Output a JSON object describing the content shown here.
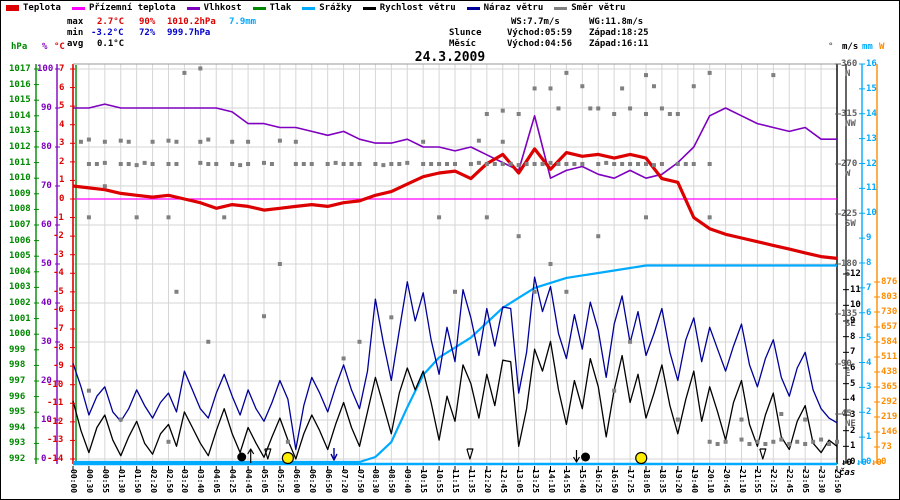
{
  "title": "24.3.2009",
  "legend": {
    "items": [
      {
        "label": "Teplota",
        "color": "#dd0000",
        "thick": 6
      },
      {
        "label": "Přízemní teplota",
        "color": "#ff00ff",
        "thick": 3
      },
      {
        "label": "Vlhkost",
        "color": "#7f00bf",
        "thick": 3
      },
      {
        "label": "Tlak",
        "color": "#008800",
        "thick": 3
      },
      {
        "label": "Srážky",
        "color": "#00aaff",
        "thick": 3
      },
      {
        "label": "Rychlost větru",
        "color": "#000000",
        "thick": 3
      },
      {
        "label": "Náraz větru",
        "color": "#000099",
        "thick": 3
      },
      {
        "label": "Směr větru",
        "color": "#808080",
        "thick": 3
      }
    ]
  },
  "stats": {
    "max_label": "max",
    "max_temp": "2.7°C",
    "max_hum": "90%",
    "max_press": "1010.2hPa",
    "max_precip": "7.9mm",
    "min_label": "min",
    "min_temp": "-3.2°C",
    "min_hum": "72%",
    "min_press": "999.7hPa",
    "avg_label": "avg",
    "avg_temp": "0.1°C",
    "ws": "WS:7.7m/s",
    "wg": "WG:11.8m/s",
    "sun_label": "Slunce",
    "sun_rise": "Východ:05:59",
    "sun_set": "Západ:18:25",
    "moon_label": "Měsíc",
    "moon_rise": "Východ:04:56",
    "moon_set": "Západ:16:11"
  },
  "axes": {
    "hpa": {
      "header": "hPa",
      "color": "#008800",
      "labels": [
        1017,
        1016,
        1015,
        1014,
        1013,
        1012,
        1011,
        1010,
        1009,
        1008,
        1007,
        1006,
        1005,
        1004,
        1003,
        1002,
        1001,
        1000,
        999,
        998,
        997,
        996,
        995,
        994,
        993,
        992
      ]
    },
    "pct": {
      "header": "%",
      "color": "#7f00bf",
      "labels": [
        100,
        90,
        80,
        70,
        60,
        50,
        40,
        30,
        20,
        10,
        0
      ]
    },
    "temp": {
      "header": "°C",
      "color": "#dd0000",
      "labels": [
        7,
        6,
        5,
        4,
        3,
        2,
        1,
        0,
        -1,
        -2,
        -3,
        -4,
        -5,
        -6,
        -7,
        -8,
        -9,
        -10,
        -11,
        -12,
        -13,
        -14
      ]
    },
    "deg": {
      "header": "°",
      "color": "#606060",
      "labels": [
        {
          "v": 360,
          "dir": "N"
        },
        {
          "v": 315,
          "dir": "NW"
        },
        {
          "v": 270,
          "dir": "W"
        },
        {
          "v": 225,
          "dir": "SW"
        },
        {
          "v": 180,
          "dir": "S"
        },
        {
          "v": 135,
          "dir": "SE"
        },
        {
          "v": 90,
          "dir": "E"
        },
        {
          "v": 45,
          "dir": "NE"
        }
      ]
    },
    "ms": {
      "header": "m/s",
      "color": "#000000",
      "labels": [
        12,
        11,
        10,
        9,
        8,
        7,
        6,
        5,
        4,
        3,
        2,
        1,
        0
      ]
    },
    "mm": {
      "header": "mm",
      "color": "#00aaff",
      "labels": [
        16,
        15,
        14,
        13,
        12,
        11,
        10,
        9,
        8,
        7,
        6,
        5,
        4,
        3,
        2,
        1,
        0
      ]
    },
    "watt": {
      "header": "W",
      "color": "#ff8c00",
      "labels": [
        876,
        803,
        730,
        657,
        584,
        511,
        438,
        365,
        292,
        219,
        146,
        73,
        0
      ]
    }
  },
  "xaxis": {
    "caption": "čas",
    "ticks": [
      "00:00",
      "00:30",
      "00:55",
      "01:30",
      "01:50",
      "02:20",
      "02:50",
      "03:20",
      "03:40",
      "04:05",
      "04:25",
      "04:45",
      "05:05",
      "05:25",
      "06:00",
      "06:20",
      "06:50",
      "07:20",
      "07:50",
      "08:30",
      "08:50",
      "09:40",
      "10:15",
      "10:55",
      "11:15",
      "11:35",
      "12:20",
      "12:45",
      "13:05",
      "13:25",
      "14:10",
      "14:55",
      "15:40",
      "16:25",
      "16:50",
      "17:25",
      "18:05",
      "18:35",
      "19:20",
      "19:40",
      "20:10",
      "20:45",
      "21:10",
      "21:55",
      "22:25",
      "22:45",
      "23:05",
      "23:30",
      "23:50"
    ]
  },
  "end_arrows": [
    {
      "label": "↓0",
      "color": "#000000"
    },
    {
      "label": "↓0",
      "color": "#00aaff"
    },
    {
      "label": "↓0",
      "color": "#ff8c00"
    }
  ],
  "chart_data": {
    "type": "line",
    "title": "24.3.2009",
    "x_note": "49 irregular sample times, evenly spaced as indices 0-48",
    "axis_ranges": {
      "temp_c": [
        7,
        -14
      ],
      "humidity_pct": [
        0,
        100
      ],
      "pressure_hpa": [
        992,
        1017
      ],
      "wind_ms": [
        0,
        12
      ],
      "precip_mm": [
        0,
        16
      ],
      "direction_deg": [
        0,
        360
      ],
      "radiation_w": [
        0,
        876
      ]
    },
    "series": {
      "teplota_c": [
        0.7,
        0.6,
        0.5,
        0.3,
        0.2,
        0.1,
        0.2,
        0.0,
        -0.2,
        -0.5,
        -0.3,
        -0.4,
        -0.6,
        -0.5,
        -0.4,
        -0.3,
        -0.4,
        -0.2,
        -0.1,
        0.2,
        0.4,
        0.8,
        1.2,
        1.4,
        1.5,
        1.1,
        1.9,
        2.4,
        1.4,
        2.7,
        1.6,
        2.5,
        2.3,
        2.4,
        2.2,
        2.4,
        2.2,
        1.1,
        0.9,
        -1.0,
        -1.6,
        -1.9,
        -2.1,
        -2.3,
        -2.5,
        -2.7,
        -2.9,
        -3.1,
        -3.2
      ],
      "prizemni_teplota_c": [
        0.0,
        0.0
      ],
      "vlhkost_pct": [
        90,
        90,
        91,
        90,
        90,
        90,
        90,
        90,
        90,
        90,
        89,
        86,
        86,
        85,
        85,
        84,
        83,
        84,
        82,
        81,
        81,
        82,
        80,
        80,
        79,
        80,
        78,
        76,
        74,
        88,
        72,
        74,
        75,
        73,
        72,
        74,
        72,
        73,
        76,
        80,
        88,
        90,
        88,
        86,
        85,
        84,
        85,
        82,
        82
      ],
      "srazky_mm": [
        0,
        0,
        0,
        0,
        0,
        0,
        0,
        0,
        0,
        0,
        0,
        0,
        0,
        0,
        0,
        0,
        0,
        0,
        0,
        0.2,
        0.8,
        2.2,
        3.5,
        4.2,
        4.6,
        5.0,
        5.6,
        6.2,
        6.6,
        7.0,
        7.2,
        7.4,
        7.5,
        7.6,
        7.7,
        7.8,
        7.9,
        7.9,
        7.9,
        7.9,
        7.9,
        7.9,
        7.9,
        7.9,
        7.9,
        7.9,
        7.9,
        7.9,
        7.9
      ],
      "rychlost_vetru_ms": [
        3.9,
        2.0,
        0.6,
        2.2,
        3.0,
        1.4,
        0.4,
        1.6,
        2.6,
        1.2,
        0.5,
        1.8,
        2.4,
        1.0,
        3.2,
        2.2,
        1.2,
        0.4,
        2.0,
        3.4,
        1.8,
        0.6,
        2.2,
        1.2,
        0.3,
        1.6,
        2.8,
        1.4,
        0.2,
        1.8,
        3.0,
        2.0,
        0.8,
        2.4,
        3.8,
        2.2,
        1.0,
        3.2,
        5.4,
        3.6,
        1.8,
        4.4,
        6.0,
        4.6,
        5.8,
        3.8,
        1.4,
        4.2,
        2.6,
        6.2,
        5.0,
        2.8,
        5.6,
        3.6,
        6.5,
        6.4,
        1.0,
        3.4,
        7.2,
        5.8,
        7.7,
        4.6,
        2.4,
        5.2,
        3.4,
        6.6,
        4.8,
        1.6,
        4.6,
        6.8,
        3.8,
        5.6,
        2.8,
        4.4,
        6.2,
        3.6,
        1.8,
        4.0,
        5.8,
        2.6,
        4.8,
        3.2,
        1.4,
        3.8,
        5.2,
        2.4,
        1.0,
        3.0,
        4.4,
        1.6,
        0.8,
        2.6,
        3.6,
        1.2,
        0.6,
        1.4,
        1.0
      ],
      "naraz_vetru_ms": [
        6.3,
        4.8,
        3.0,
        4.2,
        4.8,
        3.2,
        2.6,
        3.4,
        4.6,
        3.6,
        2.8,
        3.8,
        4.4,
        3.2,
        5.8,
        4.6,
        3.4,
        2.8,
        4.4,
        5.6,
        4.2,
        3.0,
        4.6,
        3.4,
        2.6,
        3.8,
        5.2,
        4.0,
        0.8,
        3.6,
        5.4,
        4.4,
        3.2,
        4.8,
        6.2,
        4.6,
        3.4,
        5.8,
        10.4,
        7.6,
        5.2,
        8.4,
        11.5,
        9.0,
        10.8,
        7.8,
        5.6,
        8.6,
        6.4,
        11.0,
        9.2,
        6.8,
        9.8,
        7.4,
        9.9,
        9.8,
        4.4,
        7.0,
        11.8,
        9.6,
        11.2,
        8.2,
        6.6,
        9.4,
        7.2,
        10.2,
        8.4,
        5.4,
        8.8,
        10.6,
        7.6,
        9.6,
        6.8,
        8.2,
        9.8,
        7.0,
        5.2,
        7.8,
        9.2,
        6.4,
        8.6,
        7.2,
        5.8,
        7.4,
        8.8,
        6.2,
        4.8,
        6.6,
        7.8,
        5.4,
        4.2,
        6.0,
        7.0,
        4.6,
        3.4,
        2.8,
        2.5
      ],
      "tlak_hpa_note": "trace renders as vertical segment at day start (sensor glitch); daily range 999.7-1010.2 hPa"
    },
    "smer_vetru_dots": [
      [
        1,
        270
      ],
      [
        1.5,
        270
      ],
      [
        2,
        271
      ],
      [
        3,
        270
      ],
      [
        3.5,
        270
      ],
      [
        4,
        269
      ],
      [
        4.5,
        271
      ],
      [
        5,
        270
      ],
      [
        6,
        270
      ],
      [
        6.5,
        270
      ],
      [
        8,
        271
      ],
      [
        8.5,
        270
      ],
      [
        9,
        270
      ],
      [
        10,
        270
      ],
      [
        10.5,
        269
      ],
      [
        11,
        270
      ],
      [
        12,
        271
      ],
      [
        12.5,
        270
      ],
      [
        14,
        270
      ],
      [
        14.5,
        270
      ],
      [
        15,
        270
      ],
      [
        16,
        270
      ],
      [
        16.5,
        271
      ],
      [
        17,
        270
      ],
      [
        17.5,
        270
      ],
      [
        18,
        270
      ],
      [
        19,
        270
      ],
      [
        19.5,
        269
      ],
      [
        20,
        270
      ],
      [
        20.5,
        270
      ],
      [
        21,
        271
      ],
      [
        22,
        270
      ],
      [
        22.5,
        270
      ],
      [
        23,
        270
      ],
      [
        23.5,
        270
      ],
      [
        24,
        270
      ],
      [
        25,
        270
      ],
      [
        25.5,
        271
      ],
      [
        26,
        270
      ],
      [
        26.5,
        270
      ],
      [
        27,
        270
      ],
      [
        27.5,
        270
      ],
      [
        28,
        269
      ],
      [
        28.5,
        270
      ],
      [
        29,
        270
      ],
      [
        29.5,
        270
      ],
      [
        30,
        271
      ],
      [
        30.5,
        270
      ],
      [
        31,
        270
      ],
      [
        31.5,
        270
      ],
      [
        32,
        270
      ],
      [
        33,
        270
      ],
      [
        33.5,
        271
      ],
      [
        34,
        270
      ],
      [
        34.5,
        270
      ],
      [
        35,
        270
      ],
      [
        35.5,
        270
      ],
      [
        36,
        270
      ],
      [
        36.5,
        269
      ],
      [
        37,
        270
      ],
      [
        38,
        270
      ],
      [
        38.5,
        270
      ],
      [
        39,
        270
      ],
      [
        40,
        270
      ],
      [
        0.5,
        290
      ],
      [
        1,
        292
      ],
      [
        2,
        290
      ],
      [
        3,
        291
      ],
      [
        3.5,
        290
      ],
      [
        5,
        290
      ],
      [
        6,
        291
      ],
      [
        6.5,
        290
      ],
      [
        8,
        290
      ],
      [
        8.5,
        292
      ],
      [
        10,
        290
      ],
      [
        11,
        290
      ],
      [
        13,
        291
      ],
      [
        14,
        290
      ],
      [
        22,
        290
      ],
      [
        25.5,
        291
      ],
      [
        27,
        290
      ],
      [
        26,
        315
      ],
      [
        27,
        318
      ],
      [
        28,
        315
      ],
      [
        29,
        338
      ],
      [
        30,
        338
      ],
      [
        30.5,
        320
      ],
      [
        32,
        340
      ],
      [
        32.5,
        320
      ],
      [
        33,
        320
      ],
      [
        34,
        315
      ],
      [
        34.5,
        338
      ],
      [
        35,
        320
      ],
      [
        36,
        315
      ],
      [
        36.5,
        340
      ],
      [
        37,
        320
      ],
      [
        37.5,
        315
      ],
      [
        38,
        315
      ],
      [
        39,
        340
      ],
      [
        7,
        352
      ],
      [
        8,
        356
      ],
      [
        36,
        350
      ],
      [
        40,
        352
      ],
      [
        44,
        350
      ],
      [
        31,
        352
      ],
      [
        1,
        222
      ],
      [
        2,
        250
      ],
      [
        4,
        222
      ],
      [
        6,
        222
      ],
      [
        9.5,
        222
      ],
      [
        13,
        180
      ],
      [
        6.5,
        155
      ],
      [
        12,
        133
      ],
      [
        8.5,
        110
      ],
      [
        1,
        66
      ],
      [
        3,
        40
      ],
      [
        6,
        20
      ],
      [
        13.5,
        20
      ],
      [
        17,
        95
      ],
      [
        24,
        155
      ],
      [
        18,
        110
      ],
      [
        20,
        132
      ],
      [
        28,
        205
      ],
      [
        30,
        180
      ],
      [
        31,
        155
      ],
      [
        33,
        205
      ],
      [
        29,
        155
      ],
      [
        35,
        110
      ],
      [
        34,
        66
      ],
      [
        38,
        40
      ],
      [
        23,
        222
      ],
      [
        26,
        222
      ],
      [
        36,
        222
      ],
      [
        40,
        222
      ],
      [
        40,
        20
      ],
      [
        40.5,
        18
      ],
      [
        41,
        20
      ],
      [
        42,
        22
      ],
      [
        42.5,
        18
      ],
      [
        43,
        20
      ],
      [
        43.5,
        18
      ],
      [
        44,
        20
      ],
      [
        44.5,
        22
      ],
      [
        45,
        18
      ],
      [
        45.5,
        20
      ],
      [
        46,
        18
      ],
      [
        46.5,
        20
      ],
      [
        47,
        22
      ],
      [
        47.5,
        18
      ],
      [
        48,
        20
      ],
      [
        42,
        40
      ],
      [
        44.5,
        45
      ],
      [
        46,
        40
      ]
    ],
    "markers": [
      {
        "name": "moonrise-icon",
        "type": "moon",
        "i": 10.6,
        "arrow": "up"
      },
      {
        "name": "arrow-down-outline-icon",
        "type": "varrow",
        "i": 12.3
      },
      {
        "name": "sunrise-icon",
        "type": "sun",
        "i": 13.5
      },
      {
        "name": "wind-arrow-icon",
        "type": "navyarrow",
        "i": 16.4
      },
      {
        "name": "arrow-down-outline-icon",
        "type": "varrow",
        "i": 25.0
      },
      {
        "name": "moonset-icon",
        "type": "moon",
        "i": 32.2,
        "arrow": "down"
      },
      {
        "name": "sunset-icon",
        "type": "sun",
        "i": 35.7
      },
      {
        "name": "arrow-down-outline-icon",
        "type": "varrow",
        "i": 43.4
      }
    ],
    "colors": {
      "teplota": "#dd0000",
      "prizemni": "#ff00ff",
      "vlhkost": "#7f00bf",
      "tlak": "#008800",
      "srazky": "#00aaff",
      "rychlost": "#000000",
      "naraz": "#000099",
      "smer": "#808080",
      "grid": "#d6d6d6"
    }
  }
}
